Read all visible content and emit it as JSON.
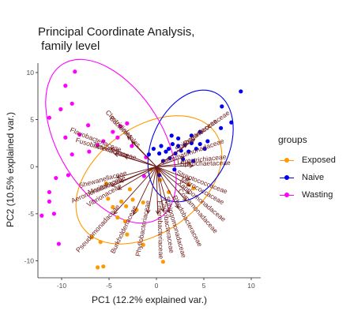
{
  "chart_data": {
    "type": "scatter",
    "title": "Principal Coordinate Analysis,\n family level",
    "xlabel": "PC1 (12.2% explained var.)",
    "ylabel": "PC2 (10.5% explained var.)",
    "xlim": [
      -12.5,
      11
    ],
    "ylim": [
      -11.8,
      11
    ],
    "x_ticks": [
      -10,
      -5,
      0,
      5,
      10
    ],
    "y_ticks": [
      -10,
      -5,
      0,
      5,
      10
    ],
    "x_tick_labels": [
      "-10",
      "-5",
      "0",
      "5",
      "10"
    ],
    "y_tick_labels": [
      "-10",
      "-5",
      "0",
      "5",
      "10"
    ],
    "grid": false,
    "legend_title": "groups",
    "legend_position": "right",
    "series": [
      {
        "name": "Exposed",
        "color": "#ff9900",
        "ellipse": {
          "center": [
            -0.8,
            -1.4
          ],
          "radii": [
            8.6,
            5.6
          ],
          "angle_deg": 36
        },
        "points": [
          [
            -5.3,
            -1.8
          ],
          [
            -5.1,
            -3.4
          ],
          [
            -4.6,
            -4.3
          ],
          [
            -3.7,
            -3.7
          ],
          [
            -3.3,
            -5.8
          ],
          [
            -3.2,
            -4.2
          ],
          [
            -2.8,
            -2.4
          ],
          [
            -2.5,
            -3.5
          ],
          [
            -2.1,
            -4.6
          ],
          [
            -1.4,
            -3.8
          ],
          [
            -0.6,
            -0.3
          ],
          [
            0.2,
            -0.5
          ],
          [
            0.4,
            -1.4
          ],
          [
            -4.1,
            -5.4
          ],
          [
            -3.1,
            -7.2
          ],
          [
            -5.9,
            -8.0
          ],
          [
            -6.8,
            -7.5
          ],
          [
            -1.4,
            -8.3
          ],
          [
            0.7,
            -10.1
          ],
          [
            -5.6,
            -10.6
          ],
          [
            -6.2,
            -10.7
          ],
          [
            3.4,
            -1.9
          ],
          [
            3.9,
            -2.3
          ],
          [
            1.3,
            -2.7
          ]
        ]
      },
      {
        "name": "Naive",
        "color": "#0000ee",
        "ellipse": {
          "center": [
            3.6,
            2.2
          ],
          "radii": [
            6.2,
            4.1
          ],
          "angle_deg": 66
        },
        "points": [
          [
            -0.8,
            1.3
          ],
          [
            -0.3,
            1.9
          ],
          [
            0.3,
            1.4
          ],
          [
            0.5,
            2.2
          ],
          [
            1.0,
            1.6
          ],
          [
            1.3,
            1.9
          ],
          [
            1.7,
            2.4
          ],
          [
            2.0,
            1.4
          ],
          [
            2.3,
            2.2
          ],
          [
            2.6,
            1.7
          ],
          [
            3.0,
            2.3
          ],
          [
            3.4,
            1.6
          ],
          [
            3.7,
            2.5
          ],
          [
            4.2,
            1.9
          ],
          [
            4.6,
            2.4
          ],
          [
            5.1,
            1.9
          ],
          [
            5.4,
            2.7
          ],
          [
            1.6,
            3.3
          ],
          [
            3.7,
            3.3
          ],
          [
            4.6,
            3.7
          ],
          [
            1.4,
            0.9
          ],
          [
            2.8,
            0.8
          ],
          [
            3.9,
            0.6
          ],
          [
            1.9,
            -0.3
          ],
          [
            0.7,
            0.6
          ],
          [
            2.3,
            3.0
          ],
          [
            8.9,
            8.0
          ],
          [
            6.9,
            6.4
          ],
          [
            6.8,
            4.1
          ],
          [
            7.9,
            4.7
          ],
          [
            0.3,
            -0.9
          ]
        ]
      },
      {
        "name": "Wasting",
        "color": "#ff00ff",
        "ellipse": {
          "center": [
            -4.8,
            2.7
          ],
          "radii": [
            9.6,
            5.5
          ],
          "angle_deg": -58
        },
        "points": [
          [
            -9.6,
            8.6
          ],
          [
            -8.6,
            10.1
          ],
          [
            -11.3,
            5.2
          ],
          [
            -8.9,
            6.7
          ],
          [
            -10.1,
            6.1
          ],
          [
            -7.2,
            4.4
          ],
          [
            -4.6,
            3.7
          ],
          [
            -4.1,
            3.1
          ],
          [
            -5.6,
            2.7
          ],
          [
            -6.2,
            2.3
          ],
          [
            -3.8,
            4.3
          ],
          [
            -3.1,
            4.6
          ],
          [
            -7.1,
            1.6
          ],
          [
            -2.6,
            2.2
          ],
          [
            -9.6,
            3.1
          ],
          [
            -8.9,
            1.3
          ],
          [
            -10.6,
            -1.2
          ],
          [
            -11.3,
            -2.7
          ],
          [
            -10.8,
            -5.0
          ],
          [
            -12.1,
            -5.2
          ],
          [
            -11.3,
            -3.7
          ],
          [
            -10.3,
            -8.2
          ],
          [
            -9.3,
            -0.9
          ],
          [
            -1.1,
            1.0
          ],
          [
            -1.3,
            -1.0
          ],
          [
            -8.1,
            3.4
          ]
        ]
      }
    ],
    "arrow_color": "#6b1a1a",
    "loadings": [
      {
        "label": "Bacteroidales",
        "x": -5.8,
        "y": 5.9
      },
      {
        "label": "Clostridiales",
        "x": -6.8,
        "y": 7.2
      },
      {
        "label": "Flavobacteriaceae",
        "x": -10.8,
        "y": 4.4
      },
      {
        "label": "Fusobacteriaceae",
        "x": -9.8,
        "y": 3.0
      },
      {
        "label": "Tannerellaceae",
        "x": -7.5,
        "y": 2.4
      },
      {
        "label": "Shewanellaceae",
        "x": -9.3,
        "y": -2.6
      },
      {
        "label": "Moritellaceae",
        "x": -8.6,
        "y": -3.6
      },
      {
        "label": "Aeromonadaceae",
        "x": -10.5,
        "y": -4.6
      },
      {
        "label": "Vibrionaceae",
        "x": -9.0,
        "y": -5.4
      },
      {
        "label": "Pseudomonadaceae",
        "x": -10.0,
        "y": -11.2
      },
      {
        "label": "Burkholderiaceae",
        "x": -5.4,
        "y": -11.3
      },
      {
        "label": "Phyllobacteriaceae",
        "x": -2.0,
        "y": -11.0
      },
      {
        "label": "Enterobacteriaceae",
        "x": 0.3,
        "y": -11.2
      },
      {
        "label": "Caulobacteraceae",
        "x": 1.6,
        "y": -10.6
      },
      {
        "label": "Sphingomonadaceae",
        "x": 3.0,
        "y": -10.8
      },
      {
        "label": "Rhodobacteraceae",
        "x": 5.1,
        "y": -9.8
      },
      {
        "label": "Comamonadaceae",
        "x": 7.0,
        "y": -8.1
      },
      {
        "label": "Xanthomonadaceae",
        "x": 7.7,
        "y": -6.4
      },
      {
        "label": "Micrococcaceae",
        "x": 7.9,
        "y": -4.6
      },
      {
        "label": "Streptococcaceae",
        "x": 7.9,
        "y": -3.1
      },
      {
        "label": "Spirochaetaceae",
        "x": 8.6,
        "y": 0.2
      },
      {
        "label": "Leptotrichiaceae",
        "x": 8.0,
        "y": 0.9
      },
      {
        "label": "Gemmatimonadaceae",
        "x": 6.5,
        "y": 2.3
      },
      {
        "label": "Spirochaetaceae",
        "x": 7.2,
        "y": 5.3
      },
      {
        "label": "Ruminococcaceae",
        "x": 9.0,
        "y": 6.5
      }
    ]
  },
  "legend": {
    "title": "groups",
    "items": [
      "Exposed",
      "Naive",
      "Wasting"
    ]
  }
}
